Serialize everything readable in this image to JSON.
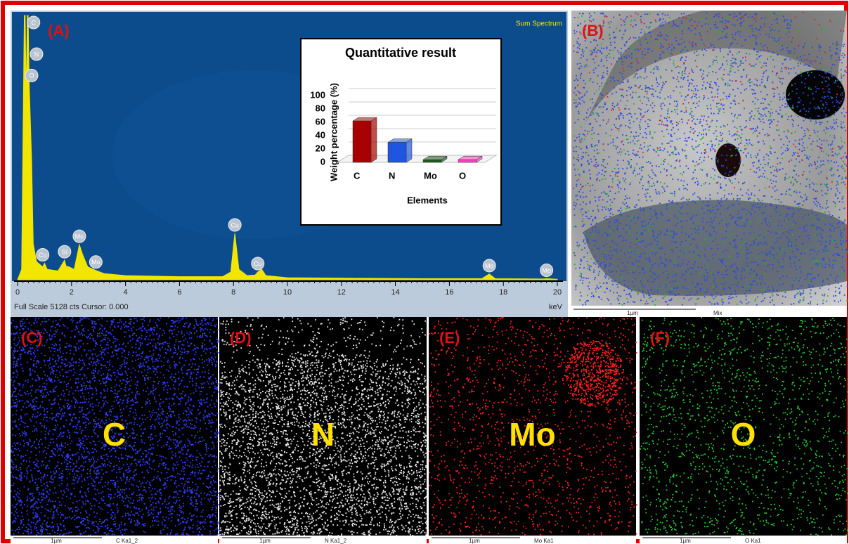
{
  "chart_data": [
    {
      "type": "area",
      "title": "Sum Spectrum",
      "label": "(A)",
      "x": [
        0,
        0.15,
        0.25,
        0.28,
        0.32,
        0.36,
        0.39,
        0.43,
        0.48,
        0.52,
        0.58,
        0.7,
        0.93,
        1.0,
        1.1,
        1.5,
        1.74,
        1.8,
        1.9,
        2.1,
        2.29,
        2.4,
        2.6,
        2.9,
        3.2,
        4,
        6,
        7.6,
        7.9,
        8.05,
        8.2,
        8.5,
        8.8,
        8.9,
        9.05,
        9.2,
        10,
        12,
        15,
        17.2,
        17.48,
        17.7,
        19.5,
        19.6,
        19.8,
        20
      ],
      "values": [
        0,
        200,
        5128,
        5128,
        3500,
        5128,
        5128,
        3800,
        3000,
        2300,
        700,
        350,
        250,
        320,
        200,
        170,
        380,
        260,
        250,
        200,
        680,
        500,
        250,
        180,
        120,
        80,
        60,
        60,
        150,
        900,
        200,
        80,
        90,
        150,
        200,
        80,
        40,
        30,
        20,
        20,
        110,
        20,
        15,
        20,
        15,
        10
      ],
      "color": "#f2e600",
      "xlim": [
        0,
        20
      ],
      "xticks": [
        0,
        2,
        4,
        6,
        8,
        10,
        12,
        14,
        16,
        18,
        20
      ],
      "ylim": [
        0,
        5128
      ],
      "xlabel": "keV",
      "footer": "Full Scale 5128 cts Cursor: 0.000",
      "annotations": [
        {
          "text": "C",
          "x": 0.28
        },
        {
          "text": "N",
          "x": 0.39
        },
        {
          "text": "O",
          "x": 0.52
        },
        {
          "text": "Cu",
          "x": 0.93
        },
        {
          "text": "Si",
          "x": 1.74
        },
        {
          "text": "Mo",
          "x": 2.29
        },
        {
          "text": "Mo",
          "x": 2.9
        },
        {
          "text": "Cu",
          "x": 8.05
        },
        {
          "text": "Cu",
          "x": 8.9
        },
        {
          "text": "Mo",
          "x": 17.48
        },
        {
          "text": "Mo",
          "x": 19.6
        }
      ]
    },
    {
      "type": "bar",
      "title": "Quantitative result",
      "ylabel": "Weight percentage (%)",
      "xlabel": "Elements",
      "categories": [
        "C",
        "N",
        "Mo",
        "O"
      ],
      "values": [
        62,
        30,
        4,
        4
      ],
      "colors": [
        "#a80000",
        "#1f55e0",
        "#1e5a1e",
        "#ff40c0"
      ],
      "ylim": [
        0,
        100
      ],
      "yticks": [
        0,
        20,
        40,
        60,
        80,
        100
      ],
      "grid": true
    }
  ],
  "panels": [
    {
      "label": "(B)",
      "scale": "1µm",
      "caption": "Mix"
    },
    {
      "label": "(C)",
      "element": "C",
      "scale": "1µm",
      "caption": "C Ka1_2"
    },
    {
      "label": "(D)",
      "element": "N",
      "scale": "1µm",
      "caption": "N Ka1_2"
    },
    {
      "label": "(E)",
      "element": "Mo",
      "scale": "1µm",
      "caption": "Mo Ka1"
    },
    {
      "label": "(F)",
      "element": "O",
      "scale": "1µm",
      "caption": "O Ka1"
    }
  ]
}
